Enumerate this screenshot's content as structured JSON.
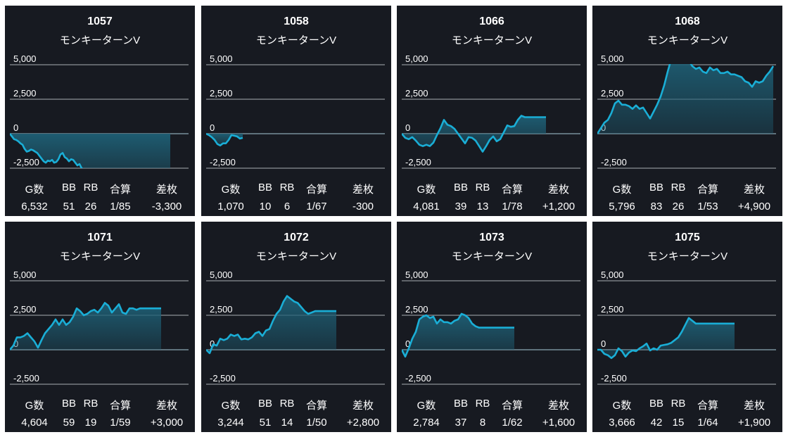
{
  "labels": {
    "games": "G数",
    "bb": "BB",
    "rb": "RB",
    "combined": "合算",
    "diff": "差枚"
  },
  "colors": {
    "card_bg": "#171a21",
    "line": "#1aaed6",
    "fill_top": "#1e5f75",
    "grid": "#8d9096",
    "zero_line": "#8aa7b3",
    "text": "#ffffff"
  },
  "chart_data": [
    {
      "type": "area",
      "title": "1057",
      "subtitle": "モンキーターンV",
      "ylim": [
        -2500,
        5000
      ],
      "yticks": [
        5000,
        2500,
        0,
        -2500
      ],
      "ytick_labels": [
        "5,000",
        "2,500",
        "0",
        "-2,500"
      ],
      "x": [
        0,
        3,
        6,
        9,
        12,
        15,
        18,
        21,
        24,
        27,
        30,
        33,
        36,
        39,
        42,
        45,
        48,
        51,
        54,
        57,
        60,
        63,
        66,
        69,
        72,
        75,
        78,
        81,
        84,
        87,
        90,
        93,
        96,
        99,
        102,
        105,
        108,
        111,
        114,
        117,
        120,
        123,
        126,
        129,
        132,
        135,
        138,
        141,
        144,
        147,
        150,
        153,
        156,
        159,
        162,
        165,
        168,
        171,
        174,
        177,
        180,
        183,
        186,
        189,
        192,
        195,
        198,
        201,
        204,
        207,
        210,
        213,
        216,
        219,
        222,
        225,
        228
      ],
      "y": [
        0,
        -200,
        -400,
        -450,
        -550,
        -700,
        -800,
        -1100,
        -1300,
        -1250,
        -1150,
        -1200,
        -1300,
        -1400,
        -1600,
        -1800,
        -2000,
        -2100,
        -1950,
        -2000,
        -1900,
        -2100,
        -2050,
        -1850,
        -1500,
        -1400,
        -1700,
        -1800,
        -2000,
        -1850,
        -1900,
        -2100,
        -2300,
        -2200,
        -2500,
        -2600,
        -2700,
        -2800,
        -2900,
        -3000,
        -3100,
        -3150,
        -3200,
        -3250,
        -3300,
        -3300,
        -3300,
        -3300,
        -3300,
        -3300,
        -3300,
        -3300,
        -3300,
        -3300,
        -3300,
        -3300,
        -3300,
        -3300,
        -3300,
        -3300,
        -3300,
        -3300,
        -3300,
        -3300,
        -3300,
        -3300,
        -3300,
        -3300,
        -3300,
        -3300,
        -3300,
        -3300,
        -3300,
        -3300,
        -3300,
        -3300,
        -3300
      ],
      "stats": {
        "games": "6,532",
        "bb": "51",
        "rb": "26",
        "combined": "1/85",
        "diff": "-3,300"
      }
    },
    {
      "type": "area",
      "title": "1058",
      "subtitle": "モンキーターンV",
      "ylim": [
        -2500,
        5000
      ],
      "yticks": [
        5000,
        2500,
        0,
        -2500
      ],
      "ytick_labels": [
        "5,000",
        "2,500",
        "0",
        "-2,500"
      ],
      "x": [
        0,
        4,
        8,
        12,
        16,
        20,
        24,
        28,
        32,
        36,
        40,
        44,
        48,
        52
      ],
      "y": [
        0,
        -100,
        -250,
        -450,
        -750,
        -850,
        -700,
        -700,
        -450,
        -100,
        -150,
        -200,
        -350,
        -300
      ],
      "stats": {
        "games": "1,070",
        "bb": "10",
        "rb": "6",
        "combined": "1/67",
        "diff": "-300"
      }
    },
    {
      "type": "area",
      "title": "1066",
      "subtitle": "モンキーターンV",
      "ylim": [
        -2500,
        5000
      ],
      "yticks": [
        5000,
        2500,
        0,
        -2500
      ],
      "ytick_labels": [
        "5,000",
        "2,500",
        "0",
        "-2,500"
      ],
      "x": [
        0,
        5,
        10,
        15,
        20,
        25,
        30,
        35,
        40,
        45,
        50,
        55,
        60,
        65,
        70,
        75,
        80,
        85,
        90,
        95,
        100,
        105,
        110,
        115,
        120,
        125,
        130,
        135,
        140,
        145,
        150,
        155,
        160,
        165,
        170,
        175,
        180,
        185,
        190,
        195,
        200,
        205
      ],
      "y": [
        0,
        -300,
        -400,
        -250,
        -500,
        -800,
        -900,
        -800,
        -900,
        -650,
        -100,
        400,
        1000,
        650,
        550,
        350,
        0,
        -350,
        -700,
        -250,
        -300,
        -500,
        -900,
        -1300,
        -900,
        -450,
        -200,
        -550,
        -400,
        100,
        600,
        500,
        550,
        1000,
        1300,
        1200,
        1200,
        1200,
        1200,
        1200,
        1200,
        1200
      ],
      "stats": {
        "games": "4,081",
        "bb": "39",
        "rb": "13",
        "combined": "1/78",
        "diff": "+1,200"
      }
    },
    {
      "type": "area",
      "title": "1068",
      "subtitle": "モンキーターンV",
      "ylim": [
        -2500,
        5000
      ],
      "yticks": [
        5000,
        2500,
        0,
        -2500
      ],
      "ytick_labels": [
        "5,000",
        "2,500",
        "0",
        "-2,500"
      ],
      "x": [
        0,
        5,
        10,
        15,
        20,
        25,
        30,
        35,
        40,
        45,
        50,
        55,
        60,
        65,
        70,
        75,
        80,
        85,
        90,
        95,
        100,
        105,
        110,
        115,
        120,
        125,
        130,
        135,
        140,
        145,
        150,
        155,
        160,
        165,
        170,
        175,
        180,
        185,
        190,
        195,
        200,
        205,
        210,
        215,
        220,
        225,
        230,
        235,
        240,
        245,
        250
      ],
      "y": [
        0,
        400,
        800,
        1000,
        1500,
        2200,
        2400,
        2100,
        2100,
        2000,
        1800,
        2050,
        1800,
        1900,
        1500,
        1100,
        1600,
        2100,
        2700,
        3500,
        4500,
        5400,
        5500,
        5600,
        5300,
        5200,
        5300,
        4900,
        4700,
        4800,
        4500,
        4400,
        4800,
        4600,
        4700,
        4400,
        4400,
        4500,
        4300,
        4300,
        4200,
        4100,
        3800,
        3700,
        3400,
        3800,
        3700,
        3800,
        4200,
        4500,
        4900
      ],
      "stats": {
        "games": "5,796",
        "bb": "83",
        "rb": "26",
        "combined": "1/53",
        "diff": "+4,900"
      }
    },
    {
      "type": "area",
      "title": "1071",
      "subtitle": "モンキーターンV",
      "ylim": [
        -2500,
        5000
      ],
      "yticks": [
        5000,
        2500,
        0,
        -2500
      ],
      "ytick_labels": [
        "5,000",
        "2,500",
        "0",
        "-2,500"
      ],
      "x": [
        0,
        5,
        10,
        15,
        20,
        25,
        30,
        35,
        40,
        45,
        50,
        55,
        60,
        65,
        70,
        75,
        80,
        85,
        90,
        95,
        100,
        105,
        110,
        115,
        120,
        125,
        130,
        135,
        140,
        145,
        150,
        155,
        160,
        165,
        170,
        175,
        180,
        185,
        190,
        195,
        200,
        205,
        210,
        215
      ],
      "y": [
        0,
        300,
        900,
        900,
        1000,
        1200,
        900,
        600,
        150,
        700,
        1200,
        1500,
        1800,
        2200,
        1800,
        2200,
        1800,
        2000,
        2400,
        3000,
        2800,
        2500,
        2600,
        2800,
        2900,
        2700,
        3000,
        3400,
        3200,
        2700,
        3000,
        3300,
        2700,
        2600,
        3000,
        3000,
        2900,
        3000,
        3000,
        3000,
        3000,
        3000,
        3000,
        3000
      ],
      "stats": {
        "games": "4,604",
        "bb": "59",
        "rb": "19",
        "combined": "1/59",
        "diff": "+3,000"
      }
    },
    {
      "type": "area",
      "title": "1072",
      "subtitle": "モンキーターンV",
      "ylim": [
        -2500,
        5000
      ],
      "yticks": [
        5000,
        2500,
        0,
        -2500
      ],
      "ytick_labels": [
        "5,000",
        "2,500",
        "0",
        "-2,500"
      ],
      "x": [
        0,
        5,
        10,
        15,
        20,
        25,
        30,
        35,
        40,
        45,
        50,
        55,
        60,
        65,
        70,
        75,
        80,
        85,
        90,
        95,
        100,
        105,
        110,
        115,
        120,
        125,
        130,
        135,
        140,
        145,
        150,
        155,
        160,
        165,
        170,
        175,
        180,
        185
      ],
      "y": [
        0,
        -250,
        400,
        300,
        800,
        700,
        800,
        1100,
        1000,
        1100,
        750,
        800,
        750,
        900,
        1200,
        1300,
        1000,
        1400,
        1500,
        2100,
        2600,
        2900,
        3500,
        3900,
        3700,
        3500,
        3400,
        3100,
        2800,
        2600,
        2700,
        2800,
        2800,
        2800,
        2800,
        2800,
        2800,
        2800
      ],
      "stats": {
        "games": "3,244",
        "bb": "51",
        "rb": "14",
        "combined": "1/50",
        "diff": "+2,800"
      }
    },
    {
      "type": "area",
      "title": "1073",
      "subtitle": "モンキーターンV",
      "ylim": [
        -2500,
        5000
      ],
      "yticks": [
        5000,
        2500,
        0,
        -2500
      ],
      "ytick_labels": [
        "5,000",
        "2,500",
        "0",
        "-2,500"
      ],
      "x": [
        0,
        5,
        10,
        15,
        20,
        25,
        30,
        35,
        40,
        45,
        50,
        55,
        60,
        65,
        70,
        75,
        80,
        85,
        90,
        95,
        100,
        105,
        110,
        115,
        120,
        125,
        130,
        135,
        140,
        145,
        150,
        155,
        160
      ],
      "y": [
        0,
        -500,
        100,
        800,
        1300,
        2200,
        2400,
        2500,
        2300,
        2400,
        1900,
        2200,
        2000,
        2000,
        1900,
        2100,
        2200,
        2600,
        2500,
        2300,
        1900,
        1700,
        1600,
        1600,
        1600,
        1600,
        1600,
        1600,
        1600,
        1600,
        1600,
        1600,
        1600
      ],
      "stats": {
        "games": "2,784",
        "bb": "37",
        "rb": "8",
        "combined": "1/62",
        "diff": "+1,600"
      }
    },
    {
      "type": "area",
      "title": "1075",
      "subtitle": "モンキーターンV",
      "ylim": [
        -2500,
        5000
      ],
      "yticks": [
        5000,
        2500,
        0,
        -2500
      ],
      "ytick_labels": [
        "5,000",
        "2,500",
        "0",
        "-2,500"
      ],
      "x": [
        0,
        5,
        10,
        15,
        20,
        25,
        30,
        35,
        40,
        45,
        50,
        55,
        60,
        65,
        70,
        75,
        80,
        85,
        90,
        95,
        100,
        105,
        110,
        115,
        120,
        125,
        130,
        135,
        140,
        145,
        150,
        155,
        160,
        165,
        170,
        175,
        180,
        185,
        190,
        195
      ],
      "y": [
        0,
        0,
        -300,
        -400,
        -600,
        -400,
        100,
        -100,
        -500,
        -200,
        -50,
        -100,
        100,
        250,
        450,
        -50,
        100,
        0,
        300,
        350,
        400,
        500,
        700,
        900,
        1300,
        1800,
        2300,
        2100,
        1900,
        1900,
        1900,
        1900,
        1900,
        1900,
        1900,
        1900,
        1900,
        1900,
        1900,
        1900
      ],
      "stats": {
        "games": "3,666",
        "bb": "42",
        "rb": "15",
        "combined": "1/64",
        "diff": "+1,900"
      }
    }
  ]
}
